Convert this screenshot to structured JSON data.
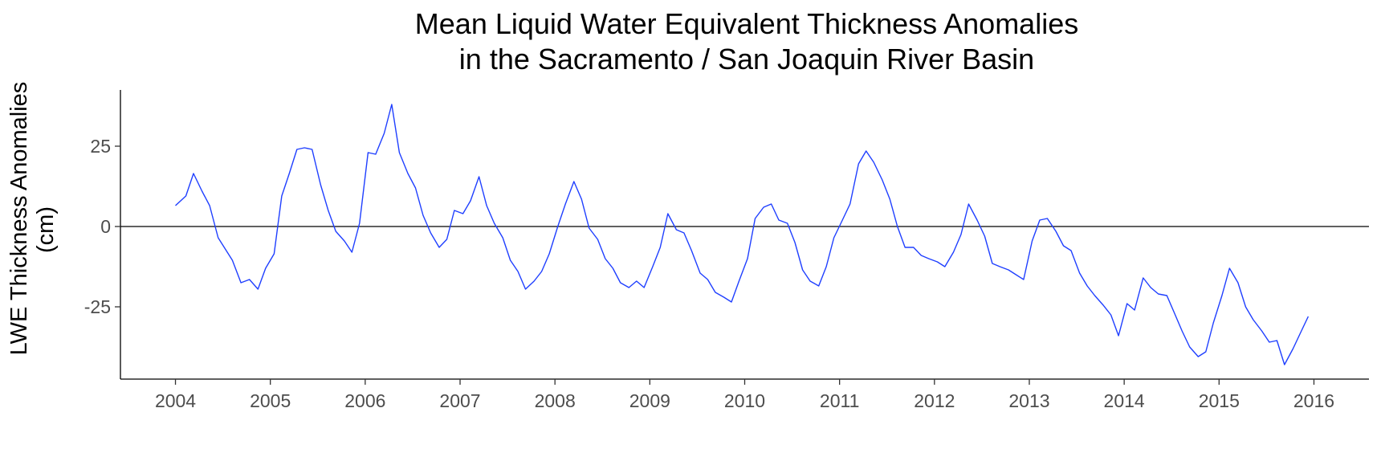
{
  "chart_data": {
    "type": "line",
    "title_line1": "Mean Liquid Water Equivalent Thickness Anomalies",
    "title_line2": "in the Sacramento / San Joaquin River Basin",
    "xlabel": "",
    "ylabel_line1": "LWE Thickness Anomalies",
    "ylabel_line2": "(cm)",
    "xlim": [
      2003.42,
      2016.58
    ],
    "ylim": [
      -47.5,
      42.5
    ],
    "x_ticks": [
      2004,
      2005,
      2006,
      2007,
      2008,
      2009,
      2010,
      2011,
      2012,
      2013,
      2014,
      2015,
      2016
    ],
    "x_tick_labels": [
      "2004",
      "2005",
      "2006",
      "2007",
      "2008",
      "2009",
      "2010",
      "2011",
      "2012",
      "2013",
      "2014",
      "2015",
      "2016"
    ],
    "y_ticks": [
      -25,
      0,
      25
    ],
    "y_tick_labels": [
      "-25",
      "0",
      "25"
    ],
    "reference_line_y": 0,
    "grid": false,
    "line_color": "#1f3fff",
    "series": [
      {
        "x": [
          2004.0,
          2004.11,
          2004.19,
          2004.28,
          2004.36,
          2004.45,
          2004.6,
          2004.69,
          2004.78,
          2004.87,
          2004.95,
          2005.04,
          2005.12,
          2005.2,
          2005.28,
          2005.36,
          2005.44,
          2005.53,
          2005.61,
          2005.69,
          2005.78,
          2005.86,
          2005.94,
          2006.03,
          2006.11,
          2006.2,
          2006.28,
          2006.36,
          2006.45,
          2006.53,
          2006.61,
          2006.69,
          2006.78,
          2006.86,
          2006.94,
          2007.03,
          2007.11,
          2007.2,
          2007.28,
          2007.36,
          2007.45,
          2007.53,
          2007.61,
          2007.69,
          2007.78,
          2007.86,
          2007.94,
          2008.03,
          2008.11,
          2008.2,
          2008.28,
          2008.36,
          2008.45,
          2008.53,
          2008.61,
          2008.69,
          2008.78,
          2008.86,
          2008.94,
          2009.03,
          2009.11,
          2009.19,
          2009.28,
          2009.36,
          2009.44,
          2009.53,
          2009.61,
          2009.69,
          2009.78,
          2009.86,
          2009.94,
          2010.03,
          2010.11,
          2010.2,
          2010.28,
          2010.36,
          2010.45,
          2010.53,
          2010.61,
          2010.69,
          2010.78,
          2010.86,
          2010.94,
          2011.03,
          2011.11,
          2011.2,
          2011.28,
          2011.36,
          2011.45,
          2011.53,
          2011.61,
          2011.69,
          2011.78,
          2011.86,
          2011.94,
          2012.03,
          2012.11,
          2012.2,
          2012.28,
          2012.36,
          2012.45,
          2012.53,
          2012.61,
          2012.69,
          2012.78,
          2012.86,
          2012.94,
          2013.03,
          2013.11,
          2013.19,
          2013.28,
          2013.36,
          2013.44,
          2013.53,
          2013.61,
          2013.69,
          2013.78,
          2013.86,
          2013.94,
          2014.03,
          2014.11,
          2014.2,
          2014.28,
          2014.36,
          2014.45,
          2014.53,
          2014.61,
          2014.69,
          2014.78,
          2014.86,
          2014.94,
          2015.03,
          2015.11,
          2015.2,
          2015.28,
          2015.36,
          2015.45,
          2015.53,
          2015.61,
          2015.69,
          2015.78,
          2015.86,
          2015.94
        ],
        "values": [
          6.5,
          9.5,
          16.5,
          11,
          6.5,
          -3.5,
          -10.5,
          -17.5,
          -16.5,
          -19.5,
          -13,
          -8.5,
          9.5,
          16.5,
          24,
          24.5,
          24,
          13,
          5,
          -1.5,
          -4.5,
          -8,
          1,
          23,
          22.5,
          29,
          38,
          23,
          16.5,
          12,
          3.5,
          -2,
          -6.5,
          -4,
          5,
          4,
          8,
          15.5,
          6.5,
          1,
          -3.5,
          -10.5,
          -14,
          -19.5,
          -17,
          -14,
          -8.5,
          0,
          7,
          14,
          8.5,
          -0.5,
          -4,
          -10,
          -13,
          -17.5,
          -19,
          -17,
          -19,
          -12.5,
          -6.5,
          4,
          -1,
          -2,
          -7.5,
          -14.5,
          -16.5,
          -20.5,
          -22,
          -23.5,
          -17,
          -10,
          2.5,
          6,
          7,
          2,
          1,
          -5,
          -13.5,
          -17,
          -18.5,
          -12.5,
          -3.5,
          2,
          7,
          19.5,
          23.5,
          20,
          14.5,
          8.5,
          0,
          -6.5,
          -6.5,
          -9,
          -10,
          -11,
          -12.5,
          -8,
          -2.5,
          7,
          2,
          -3,
          -11.5,
          -12.5,
          -13.5,
          -15,
          -16.5,
          -4.5,
          2,
          2.5,
          -1.5,
          -6,
          -7.5,
          -14.5,
          -18.5,
          -21.5,
          -24.5,
          -27.5,
          -34,
          -24,
          -26,
          -16,
          -19,
          -21,
          -21.5,
          -27,
          -32.5,
          -37.5,
          -40.5,
          -39,
          -30,
          -21.5,
          -13,
          -17.5,
          -25,
          -29,
          -32.5,
          -36,
          -35.5,
          -43,
          -38,
          -33,
          -28
        ]
      }
    ]
  }
}
